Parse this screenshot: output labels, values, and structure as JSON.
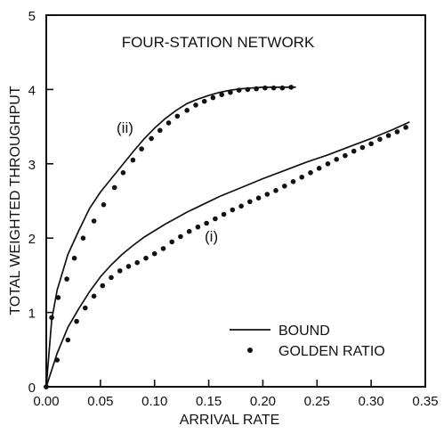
{
  "chart_data": {
    "type": "line",
    "title": "FOUR-STATION NETWORK",
    "xlabel": "ARRIVAL RATE",
    "ylabel": "TOTAL WEIGHTED THROUGHPUT",
    "xlim": [
      0,
      0.35
    ],
    "ylim": [
      0,
      5
    ],
    "x_ticks": [
      {
        "value": 0,
        "label": "0.00"
      },
      {
        "value": 0.05,
        "label": "0.05"
      },
      {
        "value": 0.1,
        "label": "0.10"
      },
      {
        "value": 0.15,
        "label": "0.15"
      },
      {
        "value": 0.2,
        "label": "0.20"
      },
      {
        "value": 0.25,
        "label": "0.25"
      },
      {
        "value": 0.3,
        "label": "0.30"
      },
      {
        "value": 0.35,
        "label": "0.35"
      }
    ],
    "y_ticks": [
      {
        "value": 0,
        "label": "0"
      },
      {
        "value": 1,
        "label": "1"
      },
      {
        "value": 2,
        "label": "2"
      },
      {
        "value": 3,
        "label": "3"
      },
      {
        "value": 4,
        "label": "4"
      },
      {
        "value": 5,
        "label": "5"
      }
    ],
    "grid": false,
    "legend": {
      "position": "bottom-right",
      "entries": [
        {
          "label": "BOUND",
          "marker": "line"
        },
        {
          "label": "GOLDEN RATIO",
          "marker": "dot"
        }
      ]
    },
    "annotations": [
      {
        "text": "(ii)",
        "x": 0.07,
        "y": 3.55
      },
      {
        "text": "(i)",
        "x": 0.118,
        "y": 1.95
      }
    ],
    "series": [
      {
        "curve": "(ii)",
        "style": "line",
        "x": [
          0.0,
          0.005,
          0.01,
          0.02,
          0.03,
          0.04,
          0.05,
          0.06,
          0.07,
          0.08,
          0.09,
          0.1,
          0.11,
          0.12,
          0.13,
          0.14,
          0.15,
          0.16,
          0.17,
          0.18,
          0.19,
          0.2,
          0.21,
          0.22,
          0.23
        ],
        "y": [
          0.0,
          0.9,
          1.3,
          1.78,
          2.1,
          2.4,
          2.62,
          2.8,
          2.98,
          3.16,
          3.33,
          3.48,
          3.61,
          3.72,
          3.81,
          3.87,
          3.92,
          3.96,
          3.99,
          4.01,
          4.02,
          4.03,
          4.03,
          4.03,
          4.03
        ]
      },
      {
        "curve": "(ii)",
        "style": "dots",
        "x": [
          0.0,
          0.005,
          0.011,
          0.019,
          0.026,
          0.034,
          0.044,
          0.053,
          0.063,
          0.071,
          0.08,
          0.088,
          0.097,
          0.105,
          0.113,
          0.121,
          0.13,
          0.138,
          0.146,
          0.154,
          0.162,
          0.17,
          0.178,
          0.186,
          0.194,
          0.202,
          0.21,
          0.218,
          0.226
        ],
        "y": [
          0.0,
          0.93,
          1.2,
          1.45,
          1.73,
          2.0,
          2.23,
          2.45,
          2.68,
          2.88,
          3.05,
          3.2,
          3.34,
          3.45,
          3.55,
          3.64,
          3.72,
          3.79,
          3.84,
          3.89,
          3.93,
          3.96,
          3.99,
          4.0,
          4.01,
          4.02,
          4.02,
          4.02,
          4.03
        ]
      },
      {
        "curve": "(i)",
        "style": "line",
        "x": [
          0.0,
          0.01,
          0.02,
          0.03,
          0.04,
          0.05,
          0.06,
          0.07,
          0.08,
          0.09,
          0.1,
          0.11,
          0.12,
          0.13,
          0.14,
          0.15,
          0.16,
          0.17,
          0.18,
          0.19,
          0.2,
          0.22,
          0.24,
          0.26,
          0.28,
          0.3,
          0.32,
          0.335
        ],
        "y": [
          0.0,
          0.45,
          0.8,
          1.05,
          1.28,
          1.48,
          1.64,
          1.78,
          1.9,
          2.01,
          2.1,
          2.19,
          2.27,
          2.35,
          2.42,
          2.49,
          2.56,
          2.62,
          2.68,
          2.74,
          2.8,
          2.91,
          3.02,
          3.12,
          3.23,
          3.34,
          3.46,
          3.56
        ]
      },
      {
        "curve": "(i)",
        "style": "dots",
        "x": [
          0.0,
          0.01,
          0.02,
          0.028,
          0.036,
          0.044,
          0.052,
          0.06,
          0.068,
          0.076,
          0.084,
          0.092,
          0.1,
          0.108,
          0.116,
          0.124,
          0.132,
          0.14,
          0.148,
          0.156,
          0.164,
          0.172,
          0.18,
          0.188,
          0.196,
          0.204,
          0.212,
          0.22,
          0.228,
          0.236,
          0.244,
          0.252,
          0.26,
          0.268,
          0.276,
          0.284,
          0.292,
          0.3,
          0.308,
          0.316,
          0.324,
          0.332
        ],
        "y": [
          0.0,
          0.36,
          0.63,
          0.88,
          1.06,
          1.22,
          1.36,
          1.47,
          1.56,
          1.62,
          1.67,
          1.73,
          1.79,
          1.86,
          1.95,
          2.02,
          2.09,
          2.15,
          2.2,
          2.26,
          2.32,
          2.38,
          2.43,
          2.49,
          2.54,
          2.59,
          2.64,
          2.7,
          2.76,
          2.82,
          2.88,
          2.94,
          3.0,
          3.06,
          3.11,
          3.17,
          3.22,
          3.27,
          3.33,
          3.38,
          3.43,
          3.49
        ]
      }
    ]
  }
}
